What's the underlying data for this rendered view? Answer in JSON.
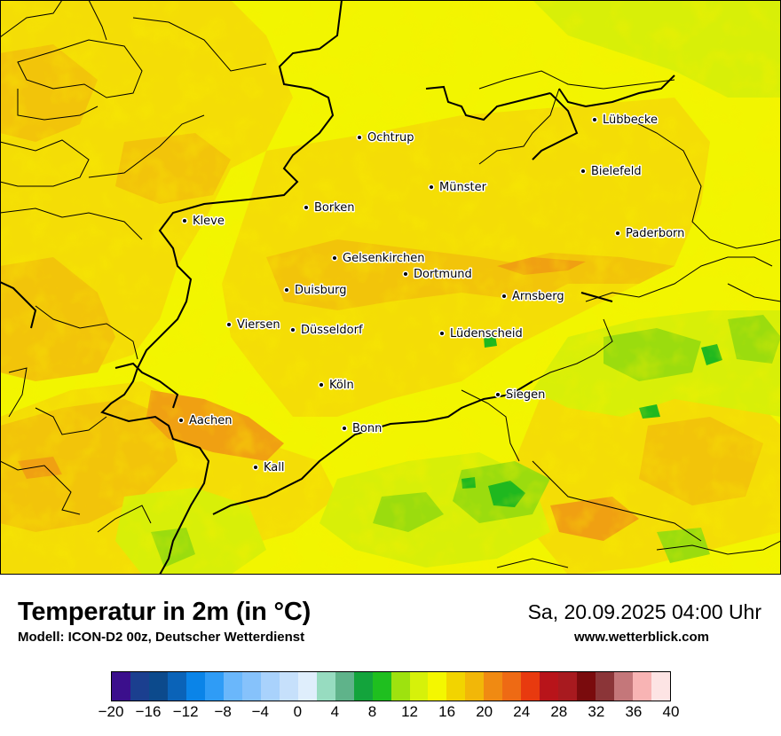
{
  "map": {
    "cities": [
      {
        "name": "Lübbecke",
        "ref": "luebbecke"
      },
      {
        "name": "Ochtrup",
        "ref": "ochtrup"
      },
      {
        "name": "Bielefeld",
        "ref": "bielefeld"
      },
      {
        "name": "Münster",
        "ref": "muenster"
      },
      {
        "name": "Kleve",
        "ref": "kleve"
      },
      {
        "name": "Borken",
        "ref": "borken"
      },
      {
        "name": "Paderborn",
        "ref": "paderborn"
      },
      {
        "name": "Gelsenkirchen",
        "ref": "gelsenkirchen"
      },
      {
        "name": "Dortmund",
        "ref": "dortmund"
      },
      {
        "name": "Duisburg",
        "ref": "duisburg"
      },
      {
        "name": "Arnsberg",
        "ref": "arnsberg"
      },
      {
        "name": "Viersen",
        "ref": "viersen"
      },
      {
        "name": "Düsseldorf",
        "ref": "duesseldorf"
      },
      {
        "name": "Lüdenscheid",
        "ref": "luedenscheid"
      },
      {
        "name": "Köln",
        "ref": "koeln"
      },
      {
        "name": "Siegen",
        "ref": "siegen"
      },
      {
        "name": "Aachen",
        "ref": "aachen"
      },
      {
        "name": "Bonn",
        "ref": "bonn"
      },
      {
        "name": "Kall",
        "ref": "kall"
      }
    ]
  },
  "footer": {
    "title": "Temperatur in 2m (in °C)",
    "subtitle": "Modell: ICON-D2 00z, Deutscher Wetterdienst",
    "datetime": "Sa, 20.09.2025 04:00 Uhr",
    "website": "www.wetterblick.com"
  },
  "colorscale": {
    "ticks": [
      "−20",
      "−16",
      "−12",
      "−8",
      "−4",
      "0",
      "4",
      "8",
      "12",
      "16",
      "20",
      "24",
      "28",
      "32",
      "36",
      "40"
    ],
    "range": [
      -20,
      40
    ],
    "step": 2,
    "colors": [
      "#3b0f8c",
      "#1b3f8f",
      "#0c4a8c",
      "#0a63b8",
      "#0a84e8",
      "#2f9cf6",
      "#6ab7fb",
      "#86c2fb",
      "#a9d2fc",
      "#c6e0fb",
      "#dfeefc",
      "#97dcc0",
      "#5fb38a",
      "#13a43c",
      "#1fbf1f",
      "#9ee20f",
      "#d6f10a",
      "#f4f700",
      "#f2d400",
      "#f2b708",
      "#f08a12",
      "#ee6a14",
      "#e83a0f",
      "#b8141a",
      "#a81a1f",
      "#7a0b0d",
      "#8b3538",
      "#c4777a",
      "#f8b4b4",
      "#fde4e4"
    ]
  },
  "colors": {
    "yellow_light": "#f2f500",
    "yellow": "#f4dd06",
    "orange_light": "#f2c40a",
    "orange": "#f0a012",
    "green_light": "#d8ef08",
    "green_mid": "#9bdc0e",
    "green_dark": "#1fb81f"
  }
}
